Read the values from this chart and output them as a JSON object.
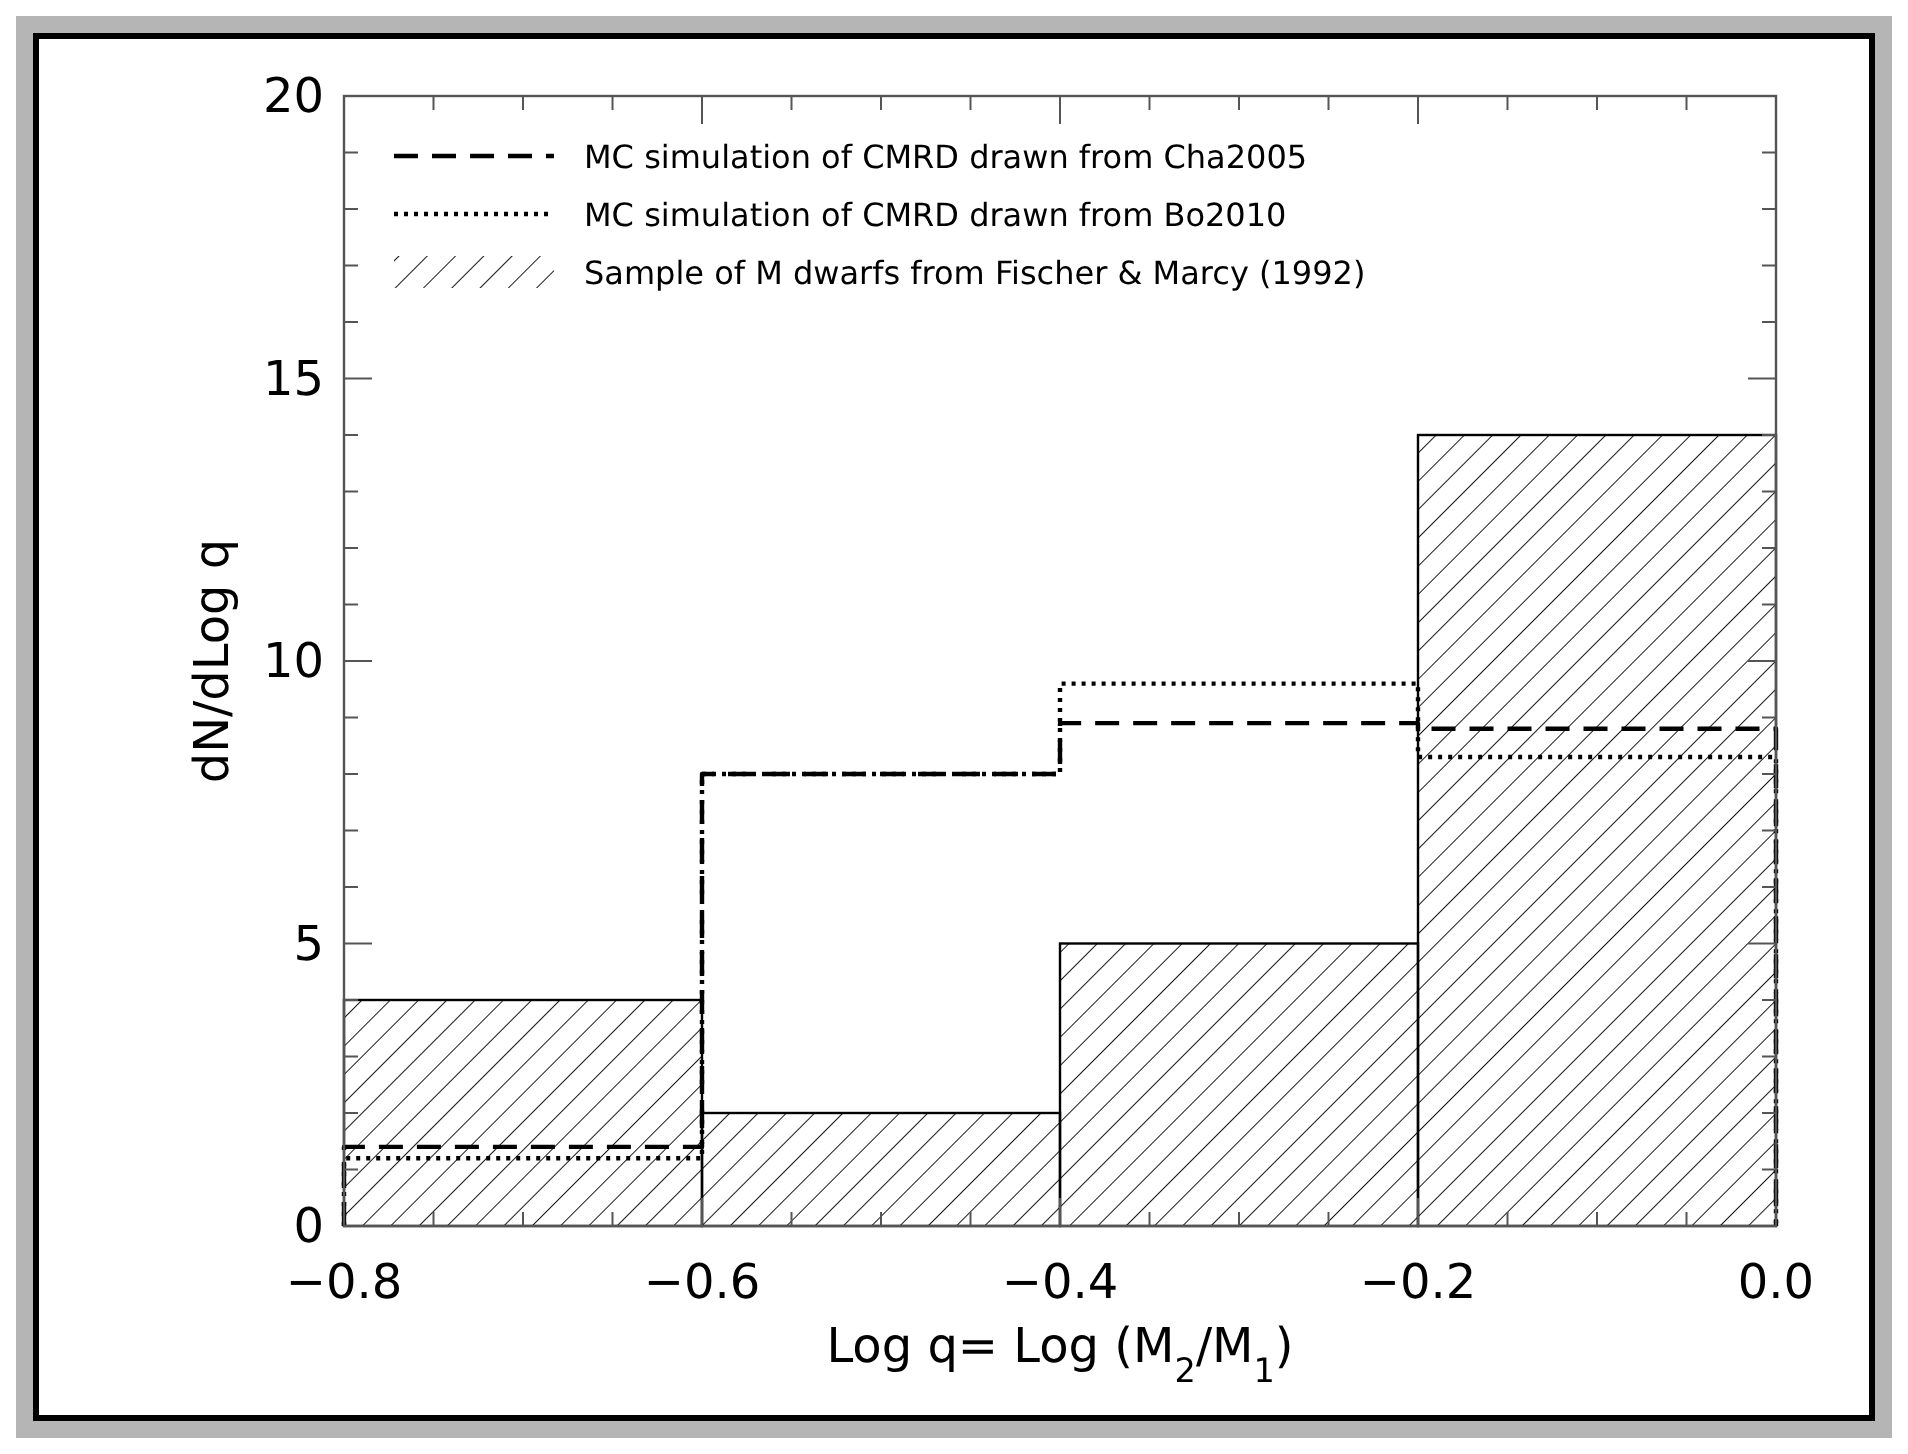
{
  "chart_data": {
    "type": "histogram",
    "xlabel": "Log q= Log (M$_{2}$/M$_{1}$)",
    "ylabel": "dN/dLog q",
    "bins": [
      -0.8,
      -0.6,
      -0.4,
      -0.2,
      0.0
    ],
    "series": [
      {
        "name": "MC simulation of CMRD drawn from Cha2005",
        "type": "step",
        "line_style": "dashed",
        "color": "#000000",
        "x": [
          -0.8,
          -0.8,
          -0.6,
          -0.4,
          -0.2,
          0.0,
          0.0
        ],
        "values": [
          0,
          1.4,
          8.0,
          8.9,
          8.8,
          8.8,
          0
        ]
      },
      {
        "name": "MC simulation of CMRD drawn from Bo2010",
        "type": "step",
        "line_style": "dotted",
        "color": "#000000",
        "x": [
          -0.8,
          -0.8,
          -0.6,
          -0.4,
          -0.2,
          0.0,
          0.0
        ],
        "values": [
          0,
          1.2,
          8.0,
          9.6,
          8.3,
          8.3,
          0
        ]
      },
      {
        "name": "Sample of M dwarfs from Fischer & Marcy (1992)",
        "line_style": "solid",
        "color": "#000000",
        "values": [
          4,
          2,
          5,
          14
        ]
      }
    ],
    "xlim": [
      -0.8,
      0.0
    ],
    "ylim": [
      0,
      20
    ],
    "xticks": [
      {
        "value": -0.8,
        "label": "−0.8"
      },
      {
        "value": -0.75,
        "label": null
      },
      {
        "value": -0.7,
        "label": null
      },
      {
        "value": -0.65,
        "label": null
      },
      {
        "value": -0.6,
        "label": "−0.6"
      },
      {
        "value": -0.55,
        "label": null
      },
      {
        "value": -0.5,
        "label": null
      },
      {
        "value": -0.45,
        "label": null
      },
      {
        "value": -0.4,
        "label": "−0.4"
      },
      {
        "value": -0.35,
        "label": null
      },
      {
        "value": -0.3,
        "label": null
      },
      {
        "value": -0.25,
        "label": null
      },
      {
        "value": -0.2,
        "label": "−0.2"
      },
      {
        "value": -0.15,
        "label": null
      },
      {
        "value": -0.1,
        "label": null
      },
      {
        "value": -0.05,
        "label": null
      },
      {
        "value": 0.0,
        "label": "0.0"
      }
    ],
    "yticks": [
      0,
      {
        "value": 1,
        "label": null
      },
      {
        "value": 2,
        "label": null
      },
      {
        "value": 3,
        "label": null
      },
      {
        "value": 4,
        "label": null
      },
      5,
      {
        "value": 6,
        "label": null
      },
      {
        "value": 7,
        "label": null
      },
      {
        "value": 8,
        "label": null
      },
      {
        "value": 9,
        "label": null
      },
      10,
      {
        "value": 11,
        "label": null
      },
      {
        "value": 12,
        "label": null
      },
      {
        "value": 13,
        "label": null
      },
      {
        "value": 14,
        "label": null
      },
      15,
      {
        "value": 16,
        "label": null
      },
      {
        "value": 17,
        "label": null
      },
      {
        "value": 18,
        "label": null
      },
      {
        "value": 19,
        "label": null
      },
      20
    ],
    "legend": "top left",
    "grid": false
  }
}
